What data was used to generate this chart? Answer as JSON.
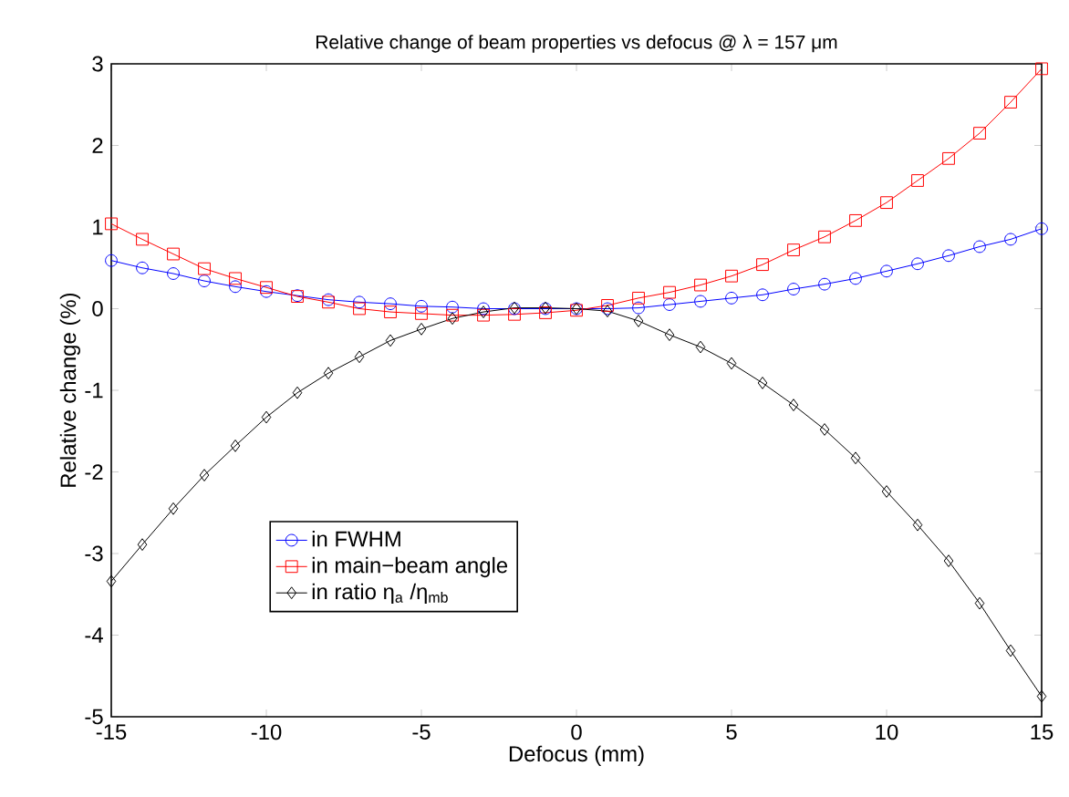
{
  "chart_data": {
    "type": "line",
    "title": "Relative change of beam properties vs defocus @ λ = 157 μm",
    "xlabel": "Defocus (mm)",
    "ylabel": "Relative change (%)",
    "x": [
      -15,
      -14,
      -13,
      -12,
      -11,
      -10,
      -9,
      -8,
      -7,
      -6,
      -5,
      -4,
      -3,
      -2,
      -1,
      0,
      1,
      2,
      3,
      4,
      5,
      6,
      7,
      8,
      9,
      10,
      11,
      12,
      13,
      14,
      15
    ],
    "series": [
      {
        "name": "in FWHM",
        "color": "#0000ff",
        "marker": "circle",
        "values": [
          0.59,
          0.5,
          0.43,
          0.34,
          0.27,
          0.21,
          0.16,
          0.11,
          0.08,
          0.06,
          0.03,
          0.02,
          0.0,
          0.0,
          0.0,
          0.0,
          0.0,
          0.01,
          0.05,
          0.09,
          0.13,
          0.17,
          0.24,
          0.3,
          0.37,
          0.46,
          0.55,
          0.65,
          0.76,
          0.85,
          0.98
        ]
      },
      {
        "name": "in main−beam angle",
        "color": "#ff0000",
        "marker": "square",
        "values": [
          1.04,
          0.85,
          0.67,
          0.49,
          0.37,
          0.26,
          0.15,
          0.08,
          0.0,
          -0.04,
          -0.06,
          -0.08,
          -0.08,
          -0.07,
          -0.05,
          -0.02,
          0.04,
          0.13,
          0.2,
          0.29,
          0.4,
          0.54,
          0.72,
          0.88,
          1.08,
          1.3,
          1.57,
          1.84,
          2.15,
          2.53,
          2.94
        ]
      },
      {
        "name": "in ratio η$_{a}$ /η$_{mb}$",
        "color": "#000000",
        "marker": "diamond",
        "values": [
          -3.34,
          -2.89,
          -2.45,
          -2.04,
          -1.68,
          -1.33,
          -1.03,
          -0.79,
          -0.59,
          -0.39,
          -0.25,
          -0.12,
          -0.04,
          0.01,
          0.01,
          0.0,
          -0.03,
          -0.15,
          -0.32,
          -0.47,
          -0.67,
          -0.91,
          -1.18,
          -1.48,
          -1.83,
          -2.24,
          -2.65,
          -3.09,
          -3.61,
          -4.19,
          -4.75
        ]
      }
    ],
    "xlim": [
      -15,
      15
    ],
    "ylim": [
      -5,
      3
    ],
    "xticks": [
      -15,
      -10,
      -5,
      0,
      5,
      10,
      15
    ],
    "yticks": [
      -5,
      -4,
      -3,
      -2,
      -1,
      0,
      1,
      2,
      3
    ],
    "legend": "bottom left",
    "grid": false,
    "line_style": "solid"
  }
}
